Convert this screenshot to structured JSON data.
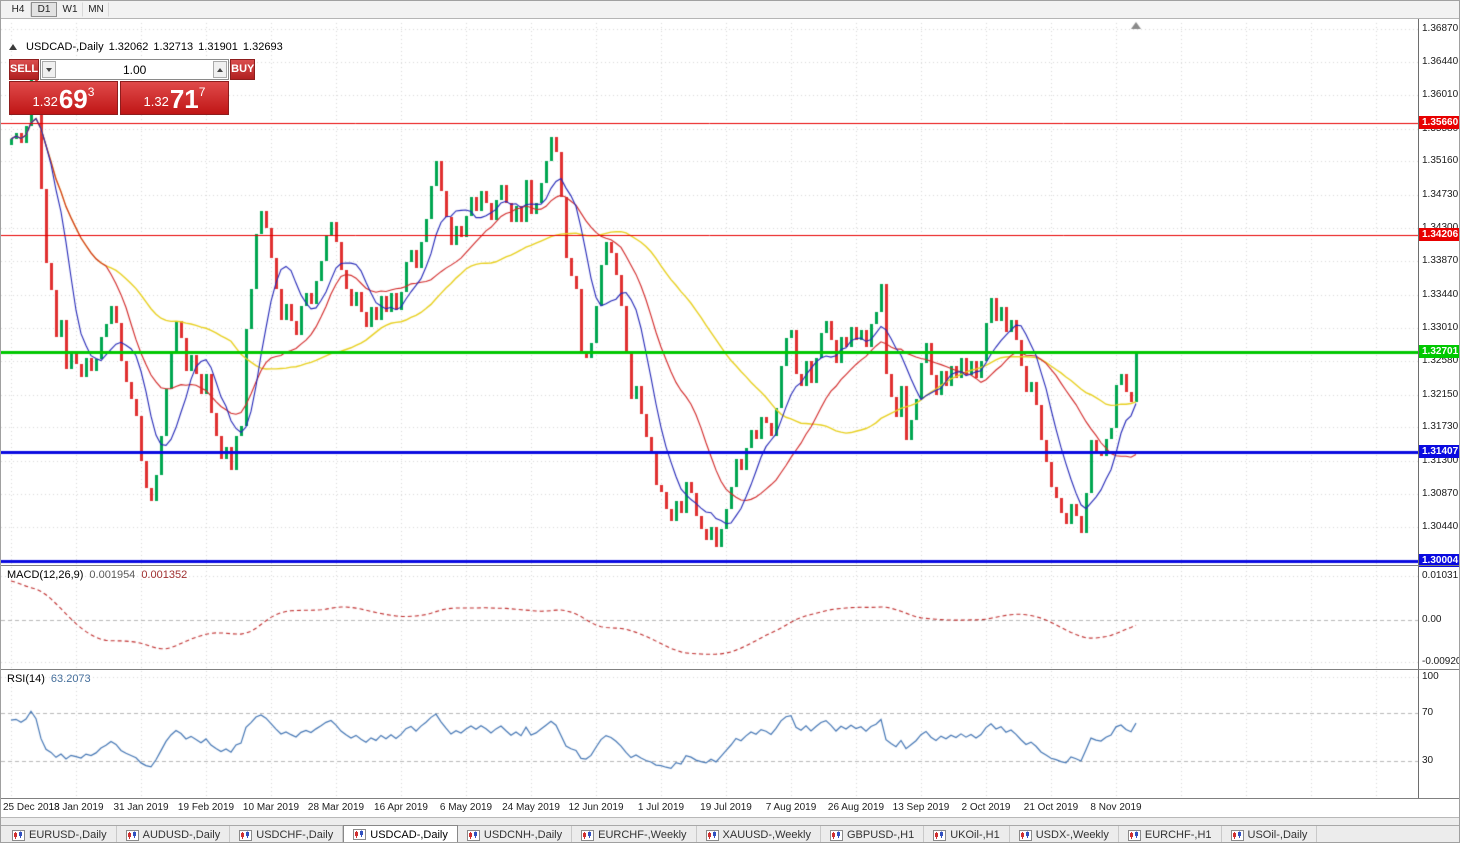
{
  "period_toolbar": {
    "buttons": [
      "H4",
      "D1",
      "W1",
      "MN"
    ],
    "active": "D1"
  },
  "chart_title": {
    "symbol": "USDCAD-,Daily",
    "open": "1.32062",
    "high": "1.32713",
    "low": "1.31901",
    "close": "1.32693"
  },
  "trade_panel": {
    "sell_button": "SELL",
    "buy_button": "BUY",
    "volume_value": "1.00",
    "sell_price": {
      "prefix": "1.32",
      "big": "69",
      "sup": "3"
    },
    "buy_price": {
      "prefix": "1.32",
      "big": "71",
      "sup": "7"
    }
  },
  "indicators": {
    "macd": {
      "name": "MACD(12,26,9)",
      "main": "0.001954",
      "signal": "0.001352",
      "axis": [
        "0.01031",
        "0.00",
        "-0.00920"
      ]
    },
    "rsi": {
      "name": "RSI(14)",
      "value": "63.2073",
      "axis": [
        "100",
        "70",
        "30"
      ]
    }
  },
  "price_axis_ticks": [
    "1.36870",
    "1.36440",
    "1.36010",
    "1.35580",
    "1.35160",
    "1.34730",
    "1.34300",
    "1.33870",
    "1.33440",
    "1.33010",
    "1.32580",
    "1.32150",
    "1.31730",
    "1.31300",
    "1.30870",
    "1.30440",
    "1.30010"
  ],
  "date_axis": [
    "25 Dec 2018",
    "13 Jan 2019",
    "31 Jan 2019",
    "19 Feb 2019",
    "10 Mar 2019",
    "28 Mar 2019",
    "16 Apr 2019",
    "6 May 2019",
    "24 May 2019",
    "12 Jun 2019",
    "1 Jul 2019",
    "19 Jul 2019",
    "7 Aug 2019",
    "26 Aug 2019",
    "13 Sep 2019",
    "2 Oct 2019",
    "21 Oct 2019",
    "8 Nov 2019"
  ],
  "tabs": {
    "items": [
      "EURUSD-,Daily",
      "AUDUSD-,Daily",
      "USDCHF-,Daily",
      "USDCAD-,Daily",
      "USDCNH-,Daily",
      "EURCHF-,Weekly",
      "XAUUSD-,Weekly",
      "GBPUSD-,H1",
      "UKOil-,H1",
      "USDX-,Weekly",
      "EURCHF-,H1",
      "USOil-,Daily"
    ],
    "active": "USDCAD-,Daily"
  },
  "colors": {
    "bull": "#00a650",
    "bear": "#e03030",
    "hline_red": "#e80000",
    "hline_green": "#00c800",
    "hline_blue": "#0a0ae0",
    "macd_histogram": "#8f8f8f",
    "macd_signal": "#c03030",
    "rsi_line": "#4577b5",
    "ma_fast": "#2428b8",
    "ma_mid": "#d22828",
    "ma_slow": "#e8d020",
    "panel_red": "#c01616"
  },
  "chart_data": {
    "type": "candlestick",
    "symbol": "USDCAD",
    "period": "Daily",
    "current_ohlc": {
      "open": 1.32062,
      "high": 1.32713,
      "low": 1.31901,
      "close": 1.32693
    },
    "bid": 1.32693,
    "ask": 1.32717,
    "closes": [
      1.3545,
      1.3552,
      1.354,
      1.3562,
      1.363,
      1.3598,
      1.348,
      1.3385,
      1.335,
      1.329,
      1.3312,
      1.3248,
      1.3272,
      1.3255,
      1.3238,
      1.3262,
      1.3246,
      1.3261,
      1.329,
      1.3306,
      1.333,
      1.3308,
      1.3258,
      1.3232,
      1.321,
      1.3188,
      1.313,
      1.3095,
      1.3078,
      1.3112,
      1.3162,
      1.3222,
      1.3272,
      1.331,
      1.3288,
      1.3246,
      1.3266,
      1.3242,
      1.3216,
      1.3242,
      1.3192,
      1.3162,
      1.3132,
      1.3148,
      1.3118,
      1.3162,
      1.3174,
      1.33,
      1.3352,
      1.3422,
      1.3452,
      1.343,
      1.3392,
      1.3352,
      1.3312,
      1.3332,
      1.331,
      1.3292,
      1.333,
      1.3346,
      1.3332,
      1.3362,
      1.3388,
      1.342,
      1.3438,
      1.3412,
      1.3376,
      1.3352,
      1.333,
      1.3348,
      1.3322,
      1.3302,
      1.3328,
      1.3312,
      1.3342,
      1.3322,
      1.3346,
      1.3324,
      1.3348,
      1.3386,
      1.3402,
      1.3378,
      1.3412,
      1.3442,
      1.3484,
      1.3516,
      1.3478,
      1.3444,
      1.3408,
      1.3432,
      1.3418,
      1.3446,
      1.347,
      1.3452,
      1.3478,
      1.3462,
      1.344,
      1.3466,
      1.3486,
      1.3462,
      1.3438,
      1.3458,
      1.3438,
      1.3492,
      1.3448,
      1.3462,
      1.3488,
      1.3516,
      1.3548,
      1.3528,
      1.347,
      1.3392,
      1.3368,
      1.3352,
      1.327,
      1.3262,
      1.3282,
      1.333,
      1.3382,
      1.3412,
      1.3398,
      1.337,
      1.333,
      1.327,
      1.321,
      1.3226,
      1.319,
      1.316,
      1.314,
      1.3098,
      1.309,
      1.3068,
      1.3052,
      1.3078,
      1.3062,
      1.3102,
      1.3088,
      1.3058,
      1.3042,
      1.3028,
      1.3044,
      1.3018,
      1.3042,
      1.3068,
      1.3096,
      1.3132,
      1.3118,
      1.3146,
      1.317,
      1.3158,
      1.3186,
      1.3178,
      1.3162,
      1.3198,
      1.3252,
      1.3288,
      1.3298,
      1.3242,
      1.3226,
      1.3258,
      1.323,
      1.3262,
      1.3294,
      1.331,
      1.3286,
      1.3256,
      1.329,
      1.3276,
      1.3302,
      1.3286,
      1.3298,
      1.3276,
      1.3306,
      1.3322,
      1.3358,
      1.3242,
      1.3212,
      1.3186,
      1.3226,
      1.3156,
      1.3182,
      1.321,
      1.3256,
      1.3282,
      1.324,
      1.3214,
      1.3246,
      1.3226,
      1.3252,
      1.3236,
      1.3262,
      1.324,
      1.3258,
      1.3236,
      1.3258,
      1.3308,
      1.334,
      1.331,
      1.3328,
      1.3296,
      1.3312,
      1.3286,
      1.3252,
      1.3218,
      1.3232,
      1.3202,
      1.3156,
      1.3128,
      1.3096,
      1.3082,
      1.3062,
      1.3048,
      1.3074,
      1.3058,
      1.3036,
      1.3088,
      1.3156,
      1.3142,
      1.3136,
      1.3158,
      1.3172,
      1.3228,
      1.3242,
      1.3218,
      1.32062,
      1.32693
    ],
    "notable_extremes": [
      {
        "i": 4,
        "high": 1.3664
      },
      {
        "i": 6,
        "low": 1.3445
      },
      {
        "i": 108,
        "high": 1.3565
      },
      {
        "i": 141,
        "low": 1.3016
      },
      {
        "i": 174,
        "high": 1.3382
      },
      {
        "i": 211,
        "low": 1.3027
      },
      {
        "i": 225,
        "high": 1.32713,
        "low": 1.31901
      }
    ],
    "horizontal_lines": [
      {
        "price": 1.3566,
        "label": "1.35660",
        "color": "#e80000",
        "width": 1
      },
      {
        "price": 1.34206,
        "label": "1.34206",
        "color": "#e80000",
        "width": 1
      },
      {
        "price": 1.32701,
        "label": "1.32701",
        "color": "#00c800",
        "width": 3
      },
      {
        "price": 1.31407,
        "label": "1.31407",
        "color": "#0a0ae0",
        "width": 3
      },
      {
        "price": 1.30004,
        "label": "1.30004",
        "color": "#0a0ae0",
        "width": 3
      }
    ],
    "moving_averages": [
      {
        "period": 8,
        "color": "#2428b8"
      },
      {
        "period": 20,
        "color": "#d22828"
      },
      {
        "period": 45,
        "color": "#e8d020"
      }
    ],
    "macd": {
      "fast": 12,
      "slow": 26,
      "signal": 9,
      "current_main": 0.001954,
      "current_signal": 0.001352,
      "axis_range": [
        -0.0092,
        0.01031
      ]
    },
    "rsi": {
      "period": 14,
      "current": 63.2073,
      "levels": [
        70,
        30
      ],
      "scale": [
        0,
        100
      ]
    }
  }
}
